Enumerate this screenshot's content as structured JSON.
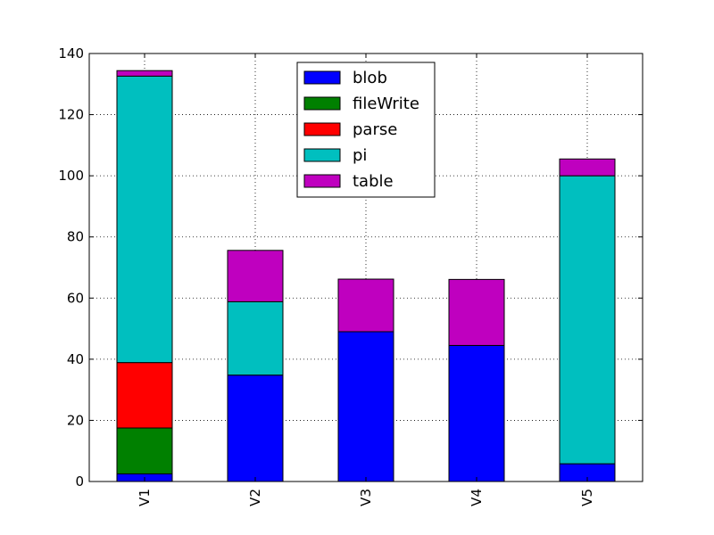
{
  "chart_data": {
    "type": "bar",
    "stacked": true,
    "categories": [
      "V1",
      "V2",
      "V3",
      "V4",
      "V5"
    ],
    "series": [
      {
        "name": "blob",
        "color": "#0000ff",
        "values": [
          2.5,
          34.8,
          49.0,
          44.5,
          5.8
        ]
      },
      {
        "name": "fileWrite",
        "color": "#008000",
        "values": [
          15.0,
          0,
          0,
          0,
          0
        ]
      },
      {
        "name": "parse",
        "color": "#ff0000",
        "values": [
          21.4,
          0,
          0,
          0,
          0
        ]
      },
      {
        "name": "pi",
        "color": "#00bfbf",
        "values": [
          93.7,
          24.0,
          0,
          0,
          94.2
        ]
      },
      {
        "name": "table",
        "color": "#bf00bf",
        "values": [
          1.8,
          16.8,
          17.2,
          21.6,
          5.5
        ]
      }
    ],
    "ylim": [
      0,
      140
    ],
    "yticks": [
      0,
      20,
      40,
      60,
      80,
      100,
      120,
      140
    ],
    "grid": true,
    "legend_position": "top-center",
    "xtick_rotation": "vertical"
  }
}
